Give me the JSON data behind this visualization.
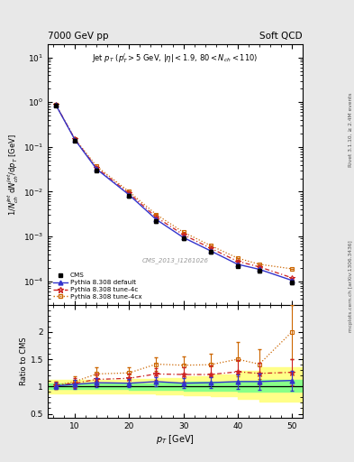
{
  "title_left": "7000 GeV pp",
  "title_right": "Soft QCD",
  "watermark": "CMS_2013_I1261026",
  "right_label1": "Rivet 3.1.10, ≥ 2.4M events",
  "right_label2": "mcplots.cern.ch [arXiv:1306.3436]",
  "cms_x": [
    6.5,
    10.0,
    14.0,
    20.0,
    25.0,
    30.0,
    35.0,
    40.0,
    44.0,
    50.0
  ],
  "cms_y": [
    0.85,
    0.14,
    0.03,
    0.008,
    0.0022,
    0.0009,
    0.00045,
    0.00022,
    0.00017,
    9.5e-05
  ],
  "cms_yerr": [
    0.05,
    0.01,
    0.002,
    0.0006,
    0.00015,
    6e-05,
    3e-05,
    1.5e-05,
    1.2e-05,
    1e-05
  ],
  "py_default_x": [
    6.5,
    10.0,
    14.0,
    20.0,
    25.0,
    30.0,
    35.0,
    40.0,
    44.0,
    50.0
  ],
  "py_default_y": [
    0.86,
    0.145,
    0.032,
    0.0085,
    0.0024,
    0.00095,
    0.00048,
    0.00024,
    0.000185,
    0.000105
  ],
  "py_default_yerr": [
    0.005,
    0.002,
    0.0005,
    0.0001,
    3e-05,
    1e-05,
    5e-06,
    3e-06,
    2e-06,
    1.5e-06
  ],
  "py_4c_x": [
    6.5,
    10.0,
    14.0,
    20.0,
    25.0,
    30.0,
    35.0,
    40.0,
    44.0,
    50.0
  ],
  "py_4c_y": [
    0.87,
    0.148,
    0.034,
    0.0092,
    0.0027,
    0.0011,
    0.00055,
    0.00028,
    0.00021,
    0.00012
  ],
  "py_4c_yerr": [
    0.005,
    0.002,
    0.0005,
    0.0001,
    3e-05,
    1e-05,
    5e-06,
    3e-06,
    2e-06,
    1.5e-06
  ],
  "py_4cx_x": [
    6.5,
    10.0,
    14.0,
    20.0,
    25.0,
    30.0,
    35.0,
    40.0,
    44.0,
    50.0
  ],
  "py_4cx_y": [
    0.87,
    0.152,
    0.037,
    0.01,
    0.0031,
    0.00125,
    0.00063,
    0.00033,
    0.00024,
    0.00019
  ],
  "py_4cx_yerr": [
    0.005,
    0.002,
    0.0006,
    0.0001,
    4e-05,
    1.2e-05,
    6e-06,
    4e-06,
    2.5e-06,
    2e-06
  ],
  "ratio_default_x": [
    6.5,
    10.0,
    14.0,
    20.0,
    25.0,
    30.0,
    35.0,
    40.0,
    44.0,
    50.0
  ],
  "ratio_default_y": [
    1.01,
    1.04,
    1.07,
    1.06,
    1.09,
    1.06,
    1.07,
    1.09,
    1.09,
    1.11
  ],
  "ratio_default_err": [
    0.06,
    0.08,
    0.08,
    0.07,
    0.08,
    0.09,
    0.1,
    0.13,
    0.15,
    0.18
  ],
  "ratio_4c_x": [
    6.5,
    10.0,
    14.0,
    20.0,
    25.0,
    30.0,
    35.0,
    40.0,
    44.0,
    50.0
  ],
  "ratio_4c_y": [
    1.02,
    1.06,
    1.13,
    1.15,
    1.23,
    1.22,
    1.22,
    1.27,
    1.24,
    1.26
  ],
  "ratio_4c_err": [
    0.06,
    0.09,
    0.1,
    0.09,
    0.11,
    0.13,
    0.16,
    0.22,
    0.2,
    0.24
  ],
  "ratio_4cx_x": [
    6.5,
    10.0,
    14.0,
    20.0,
    25.0,
    30.0,
    35.0,
    40.0,
    44.0,
    50.0
  ],
  "ratio_4cx_y": [
    1.02,
    1.09,
    1.23,
    1.25,
    1.41,
    1.39,
    1.4,
    1.5,
    1.41,
    2.0
  ],
  "ratio_4cx_err": [
    0.06,
    0.1,
    0.12,
    0.1,
    0.13,
    0.16,
    0.2,
    0.32,
    0.28,
    0.5
  ],
  "band_green_x": [
    5.0,
    8.0,
    12.0,
    16.0,
    20.0,
    25.0,
    30.0,
    35.0,
    40.0,
    44.0,
    52.0
  ],
  "band_green_lo": [
    0.95,
    0.95,
    0.95,
    0.95,
    0.94,
    0.94,
    0.93,
    0.92,
    0.91,
    0.9,
    0.9
  ],
  "band_green_hi": [
    1.05,
    1.05,
    1.05,
    1.05,
    1.06,
    1.07,
    1.08,
    1.09,
    1.1,
    1.12,
    1.12
  ],
  "band_yellow_x": [
    5.0,
    8.0,
    12.0,
    16.0,
    20.0,
    25.0,
    30.0,
    35.0,
    40.0,
    44.0,
    52.0
  ],
  "band_yellow_lo": [
    0.88,
    0.88,
    0.88,
    0.88,
    0.87,
    0.86,
    0.84,
    0.82,
    0.78,
    0.72,
    0.5
  ],
  "band_yellow_hi": [
    1.12,
    1.12,
    1.12,
    1.12,
    1.14,
    1.16,
    1.19,
    1.22,
    1.28,
    1.35,
    1.55
  ],
  "color_cms": "#000000",
  "color_default": "#3333cc",
  "color_4c": "#cc2222",
  "color_4cx": "#cc6600",
  "xlim": [
    5,
    52
  ],
  "ylim_main": [
    3e-05,
    20
  ],
  "ylim_ratio": [
    0.42,
    2.5
  ],
  "yticks_ratio": [
    0.5,
    1.0,
    1.5,
    2.0
  ],
  "xticks": [
    10,
    20,
    30,
    40,
    50
  ]
}
